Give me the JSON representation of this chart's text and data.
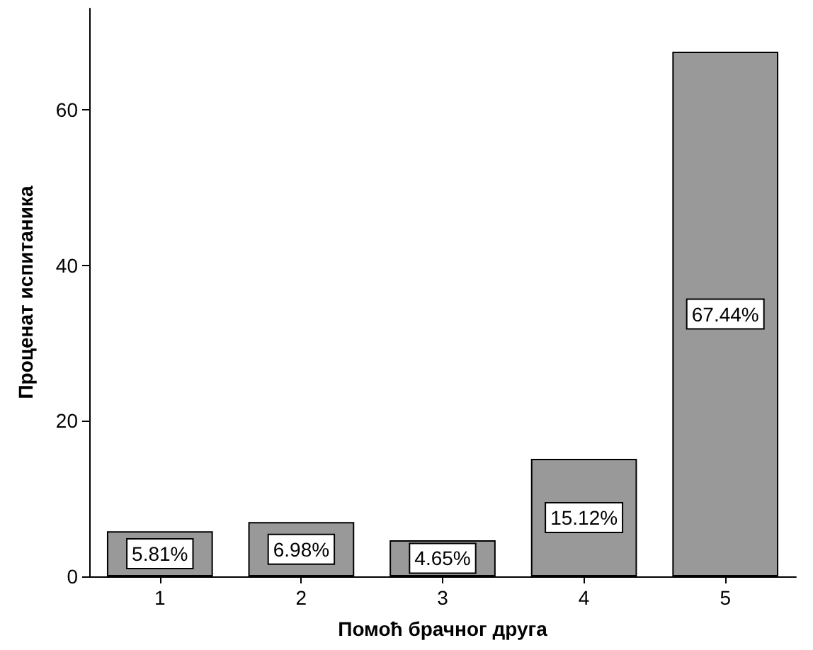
{
  "chart_data": {
    "type": "bar",
    "xlabel": "Помоћ брачног друга",
    "ylabel": "Проценат испитаника",
    "categories": [
      "1",
      "2",
      "3",
      "4",
      "5"
    ],
    "values": [
      5.81,
      6.98,
      4.65,
      15.12,
      67.44
    ],
    "value_labels": [
      "5.81%",
      "6.98%",
      "4.65%",
      "15.12%",
      "67.44%"
    ],
    "color": "#999999",
    "ylim": [
      0,
      73
    ],
    "yticks": [
      0,
      20,
      40,
      60
    ],
    "grid": false
  }
}
